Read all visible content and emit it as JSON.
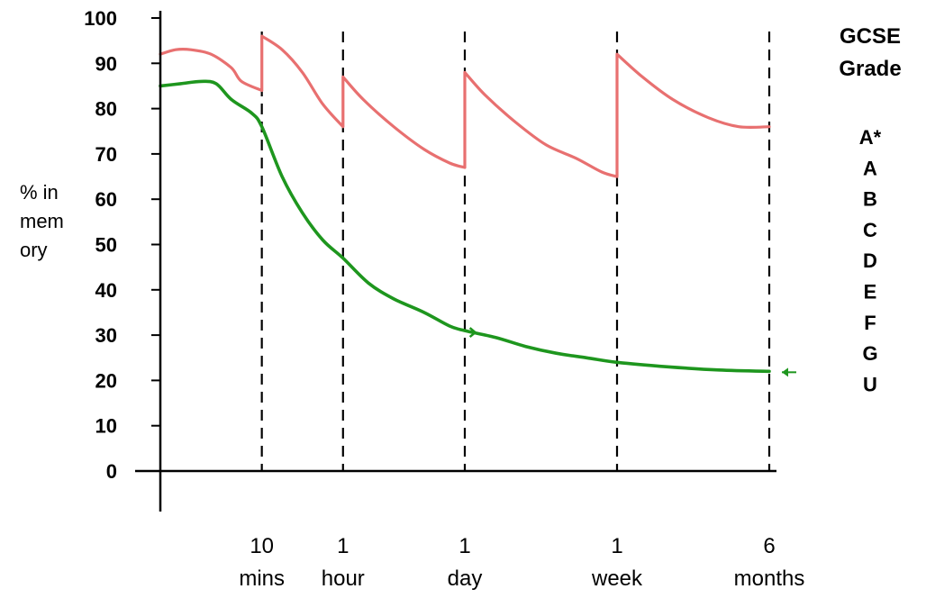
{
  "chart_data": {
    "type": "line",
    "ylabel_lines": [
      "% in",
      "mem",
      "ory"
    ],
    "ylim": [
      0,
      100
    ],
    "yticks": [
      "0",
      "10",
      "20",
      "30",
      "40",
      "50",
      "60",
      "70",
      "80",
      "90",
      "100"
    ],
    "xlim": [
      0,
      6
    ],
    "review_points": [
      {
        "x": 1.0,
        "label_lines": [
          "10",
          "mins"
        ]
      },
      {
        "x": 1.8,
        "label_lines": [
          "1",
          "hour"
        ]
      },
      {
        "x": 3.0,
        "label_lines": [
          "1",
          "day"
        ]
      },
      {
        "x": 4.5,
        "label_lines": [
          "1",
          "week"
        ]
      },
      {
        "x": 6.0,
        "label_lines": [
          "6",
          "months"
        ]
      }
    ],
    "series": [
      {
        "color": "#e87070",
        "values": [
          [
            0,
            92
          ],
          [
            0.15,
            93
          ],
          [
            0.3,
            93
          ],
          [
            0.5,
            92
          ],
          [
            0.7,
            89
          ],
          [
            0.8,
            86
          ],
          [
            1.0,
            84
          ],
          [
            1.0,
            96
          ],
          [
            1.2,
            93
          ],
          [
            1.4,
            88
          ],
          [
            1.6,
            81
          ],
          [
            1.8,
            76
          ],
          [
            1.8,
            87
          ],
          [
            2.0,
            82
          ],
          [
            2.3,
            76
          ],
          [
            2.6,
            71
          ],
          [
            2.85,
            68
          ],
          [
            3.0,
            67
          ],
          [
            3.0,
            88
          ],
          [
            3.2,
            83
          ],
          [
            3.5,
            77
          ],
          [
            3.8,
            72
          ],
          [
            4.1,
            69
          ],
          [
            4.35,
            66
          ],
          [
            4.5,
            65
          ],
          [
            4.5,
            92
          ],
          [
            4.75,
            87
          ],
          [
            5.05,
            82
          ],
          [
            5.4,
            78
          ],
          [
            5.7,
            76
          ],
          [
            6.0,
            76
          ]
        ]
      },
      {
        "color": "#1e961e",
        "values": [
          [
            0,
            85
          ],
          [
            0.2,
            85.5
          ],
          [
            0.4,
            86
          ],
          [
            0.55,
            85.5
          ],
          [
            0.7,
            82
          ],
          [
            0.9,
            79
          ],
          [
            1.0,
            76
          ],
          [
            1.2,
            65
          ],
          [
            1.4,
            57
          ],
          [
            1.6,
            51
          ],
          [
            1.8,
            47
          ],
          [
            2.05,
            41.5
          ],
          [
            2.3,
            38
          ],
          [
            2.6,
            35
          ],
          [
            2.85,
            32
          ],
          [
            3.0,
            31
          ],
          [
            3.3,
            29.5
          ],
          [
            3.6,
            27.5
          ],
          [
            3.9,
            26
          ],
          [
            4.2,
            25
          ],
          [
            4.5,
            24
          ],
          [
            5.0,
            23
          ],
          [
            5.5,
            22.3
          ],
          [
            6.0,
            22
          ]
        ]
      }
    ],
    "grade_scale": {
      "title_lines": [
        "GCSE",
        "Grade"
      ],
      "grades": [
        "A*",
        "A",
        "B",
        "C",
        "D",
        "E",
        "F",
        "G",
        "U"
      ]
    }
  }
}
